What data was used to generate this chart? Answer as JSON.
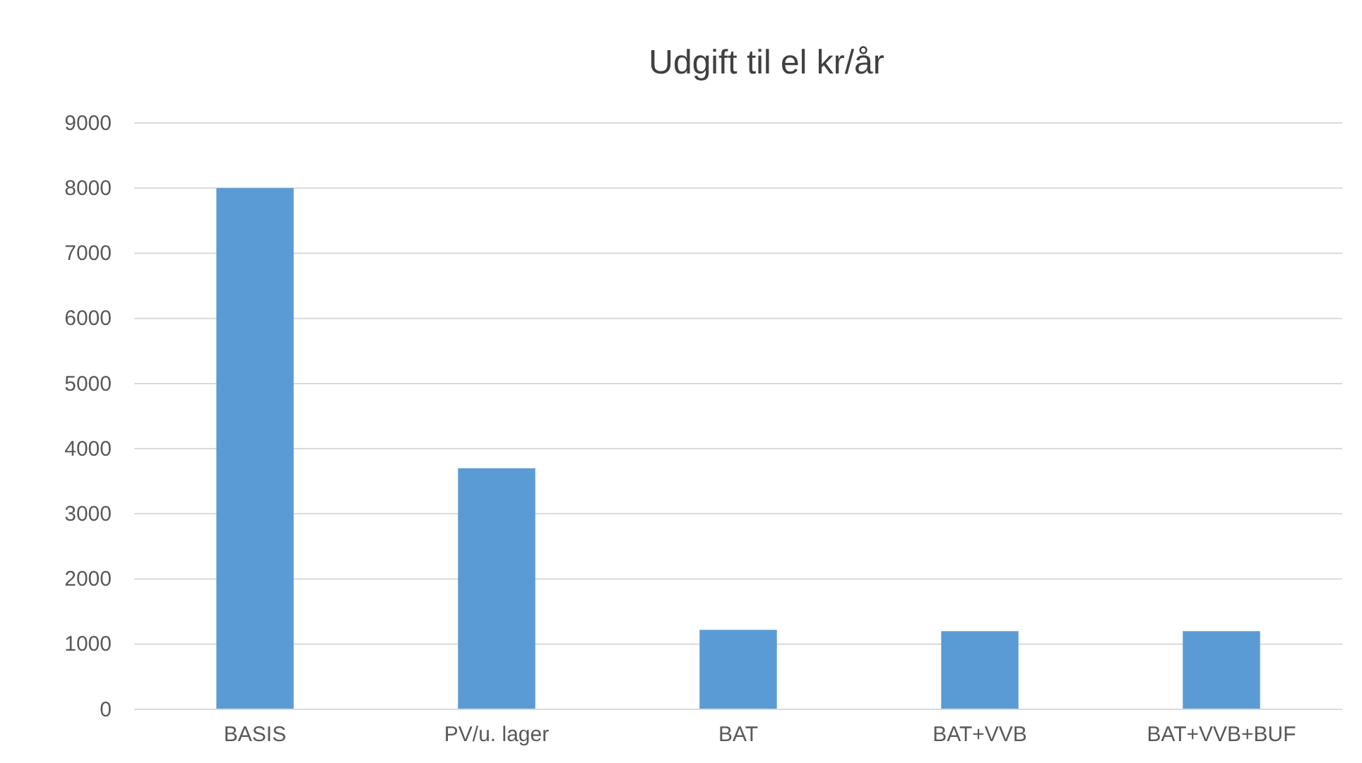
{
  "chart_data": {
    "type": "bar",
    "title": "Udgift til el kr/år",
    "categories": [
      "BASIS",
      "PV/u. lager",
      "BAT",
      "BAT+VVB",
      "BAT+VVB+BUF"
    ],
    "values": [
      8000,
      3700,
      1220,
      1200,
      1200
    ],
    "color": "#5b9bd5",
    "ylim": [
      0,
      9000
    ],
    "yticks": [
      0,
      1000,
      2000,
      3000,
      4000,
      5000,
      6000,
      7000,
      8000,
      9000
    ],
    "grid": "y"
  }
}
